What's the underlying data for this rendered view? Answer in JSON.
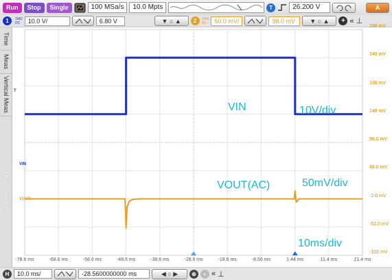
{
  "toolbar": {
    "run_label": "Run",
    "stop_label": "Stop",
    "single_label": "Single",
    "sample_rate": "100 MSa/s",
    "memory_depth": "10.0 Mpts",
    "trigger_level": "26.200 V",
    "autoscale_label": "A"
  },
  "vertical": {
    "ch1_coupling_top": "1MΩ",
    "ch1_coupling_bottom": "DC",
    "ch1_scale": "10.0 V/",
    "ch1_offset": "6.80 V",
    "ch2_coupling_top": "1MΩ",
    "ch2_coupling_bottom": "AC",
    "ch2_scale": "50.0 mV/",
    "ch2_offset": "98.0 mV"
  },
  "side_tabs": {
    "time": "Time",
    "meas": "Meas",
    "vertical_meas": "Vertical Meas",
    "measurements": "Measurements"
  },
  "horizontal": {
    "time_scale": "10.0 ms/",
    "time_position": "-28.5600000000 ms"
  },
  "annotations": {
    "vin": "VIN",
    "vin_div": "10V/div",
    "vout": "VOUT(AC)",
    "vout_div": "50mV/div",
    "time_div": "10ms/div"
  },
  "channel_labels": {
    "ch1_trigger": "T",
    "vin_ref": "VIN",
    "vout_ref": "VOUT"
  },
  "colors": {
    "ch1": "#1a2fd0",
    "ch2": "#e3a02a",
    "annotation": "#18b9d4",
    "run": "#c02fb8",
    "stop": "#7a4fc8",
    "single": "#9c5ccf",
    "trigger": "#1f6fd6"
  },
  "chart_data": {
    "type": "line",
    "x_unit": "ms",
    "x_ticks": [
      "-78.6 ms",
      "-68.6 ms",
      "-58.6 ms",
      "-48.6 ms",
      "-38.6 ms",
      "-28.6 ms",
      "-18.6 ms",
      "-8.56 ms",
      "1.44 ms",
      "11.4 ms",
      "21.4 ms"
    ],
    "xlim": [
      -78.6,
      21.4
    ],
    "y_ticks": [
      "298 mV",
      "248 mV",
      "198 mV",
      "148 mV",
      "98.0 mV",
      "48.0 mV",
      "-2.0 mV",
      "-52.0 mV",
      "-102 mV"
    ],
    "ylim": [
      -102,
      298
    ],
    "grid": true,
    "series": [
      {
        "name": "VIN",
        "x": [
          -78.6,
          -48.6,
          -48.6,
          1.44,
          1.44,
          21.4
        ],
        "y": [
          148,
          148,
          248,
          248,
          148,
          148
        ]
      },
      {
        "name": "VOUT",
        "x": [
          -78.6,
          -48.9,
          -48.6,
          -48.3,
          -47.6,
          -46.6,
          -44.6,
          1.2,
          1.44,
          1.8,
          2.6,
          21.4
        ],
        "y": [
          -2,
          -2,
          -54,
          -16,
          -6,
          -3,
          -2,
          -2,
          12,
          -8,
          -2,
          -2
        ]
      }
    ]
  }
}
